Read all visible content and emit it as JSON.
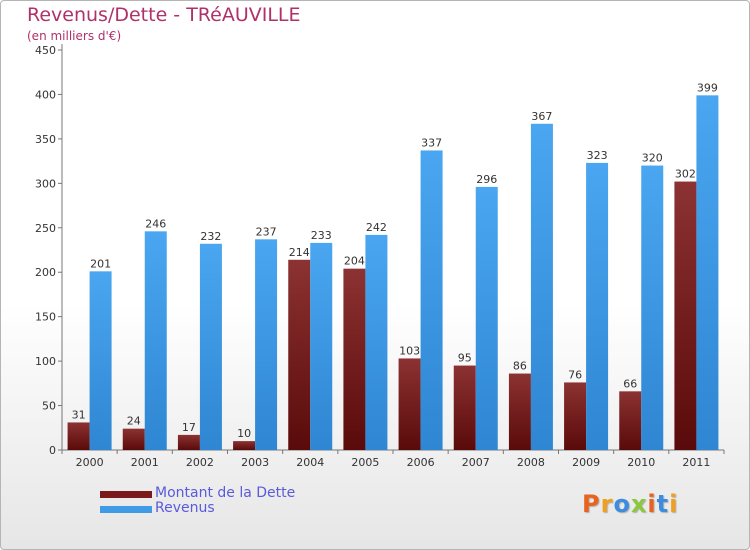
{
  "title": "Revenus/Dette - TRéAUVILLE",
  "subtitle": "(en milliers d'€)",
  "brand": "Proxiti",
  "brand_colors": [
    "#e8641e",
    "#f0a01e",
    "#3c8ce0",
    "#8cc83c",
    "#e8641e",
    "#3c8ce0",
    "#f0a01e"
  ],
  "colors": {
    "debt": "#7a1a1a",
    "revenue": "#3f9be6",
    "title": "#b0306a",
    "legend_text": "#5a5adc"
  },
  "chart_data": {
    "type": "bar",
    "title": "Revenus/Dette - TRéAUVILLE",
    "ylabel": "(en milliers d'€)",
    "xlabel": "",
    "categories": [
      "2000",
      "2001",
      "2002",
      "2003",
      "2004",
      "2005",
      "2006",
      "2007",
      "2008",
      "2009",
      "2010",
      "2011"
    ],
    "series": [
      {
        "name": "Montant de la Dette",
        "values": [
          31,
          24,
          17,
          10,
          214,
          204,
          103,
          95,
          86,
          76,
          66,
          302
        ]
      },
      {
        "name": "Revenus",
        "values": [
          201,
          246,
          232,
          237,
          233,
          242,
          337,
          296,
          367,
          323,
          320,
          399
        ]
      }
    ],
    "ylim": [
      0,
      450
    ],
    "yticks": [
      0,
      50,
      100,
      150,
      200,
      250,
      300,
      350,
      400,
      450
    ],
    "grid": false,
    "legend": "bottom-left"
  }
}
